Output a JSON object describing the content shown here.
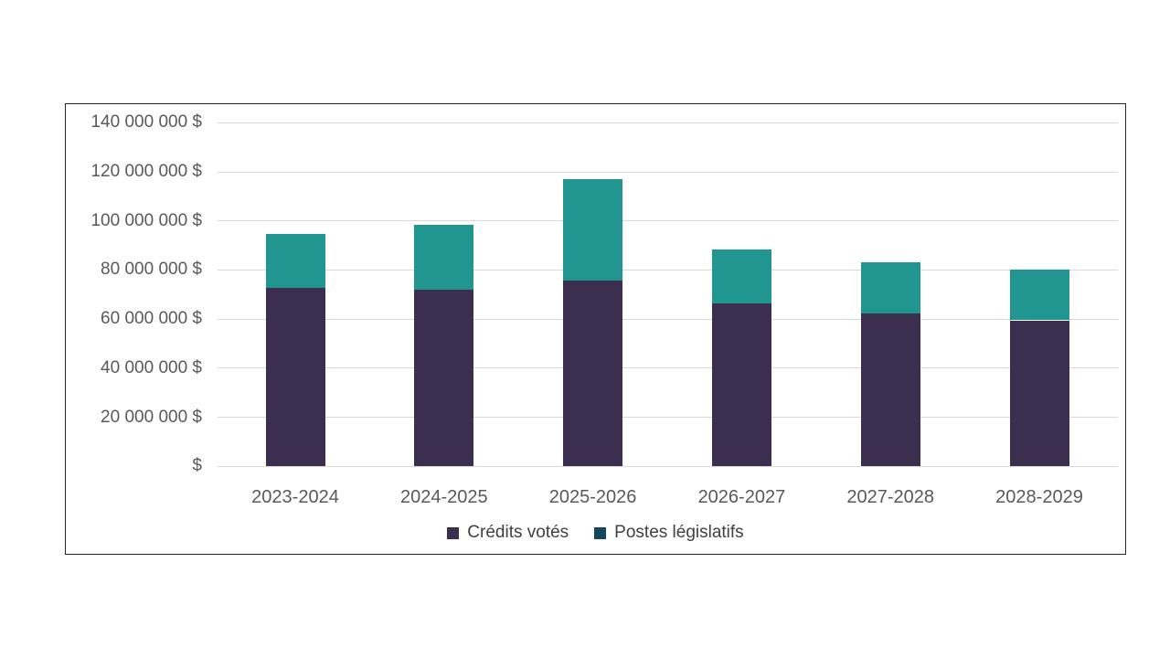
{
  "chart_data": {
    "type": "bar",
    "stacked": true,
    "title": "",
    "xlabel": "",
    "ylabel": "",
    "categories": [
      "2023-2024",
      "2024-2025",
      "2025-2026",
      "2026-2027",
      "2027-2028",
      "2028-2029"
    ],
    "series": [
      {
        "name": "Crédits votés",
        "color": "#3B2E4F",
        "legend_color": "#3B2E4F",
        "values": [
          72700000,
          71800000,
          75800000,
          66400000,
          62200000,
          59500000
        ]
      },
      {
        "name": "Postes législatifs",
        "color": "#219690",
        "legend_color": "#17465F",
        "values": [
          22000000,
          26600000,
          41200000,
          21900000,
          21100000,
          20500000
        ]
      }
    ],
    "totals": [
      94700000,
      98400000,
      117000000,
      88300000,
      83300000,
      80000000
    ],
    "ylim": [
      0,
      140000000
    ],
    "ytick_step": 20000000,
    "yticks": [
      {
        "value": 0,
        "label": "$"
      },
      {
        "value": 20000000,
        "label": "20 000 000 $"
      },
      {
        "value": 40000000,
        "label": "40 000 000 $"
      },
      {
        "value": 60000000,
        "label": "60 000 000 $"
      },
      {
        "value": 80000000,
        "label": "80 000 000 $"
      },
      {
        "value": 100000000,
        "label": "100 000 000 $"
      },
      {
        "value": 120000000,
        "label": "120 000 000 $"
      },
      {
        "value": 140000000,
        "label": "140 000 000 $"
      }
    ],
    "grid": true,
    "legend_position": "bottom"
  },
  "style": {
    "background": "#FFFFFF",
    "frame_border": "#262626",
    "gridline": "#D9D9D9",
    "axis_text": "#595959",
    "legend_text": "#404040"
  }
}
